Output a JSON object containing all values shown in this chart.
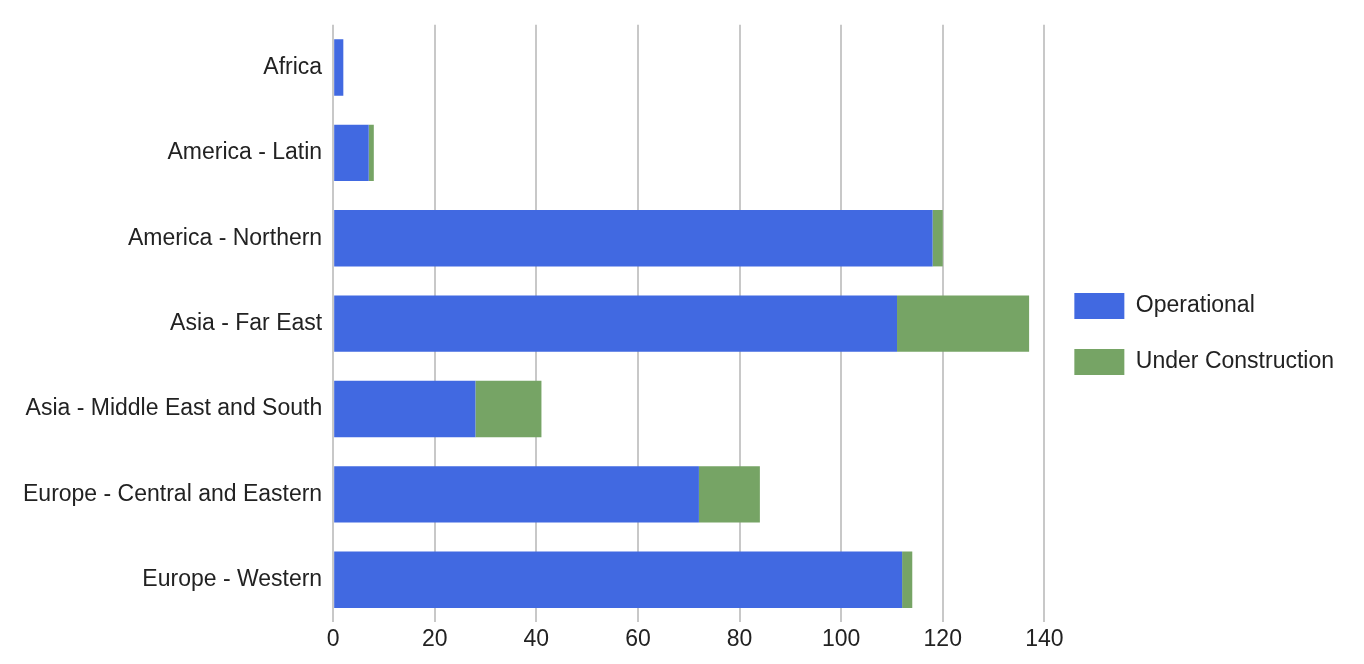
{
  "chart_data": {
    "type": "bar",
    "orientation": "horizontal",
    "stacked": true,
    "categories": [
      "Africa",
      "America - Latin",
      "America - Northern",
      "Asia - Far East",
      "Asia - Middle East and South",
      "Europe - Central and Eastern",
      "Europe - Western"
    ],
    "series": [
      {
        "name": "Operational",
        "color": "#4169e1",
        "values": [
          2,
          7,
          118,
          111,
          28,
          72,
          112
        ]
      },
      {
        "name": "Under Construction",
        "color": "#76a465",
        "values": [
          0,
          1,
          2,
          26,
          13,
          12,
          2
        ]
      }
    ],
    "xlim": [
      0,
      140
    ],
    "xticks": [
      0,
      20,
      40,
      60,
      80,
      100,
      120,
      140
    ],
    "grid": "x",
    "legend": "right"
  }
}
